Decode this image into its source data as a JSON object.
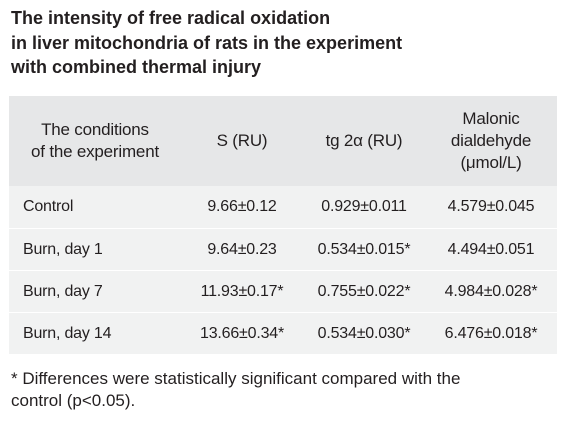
{
  "title_lines": [
    "The intensity of free radical oxidation",
    "in liver mitochondria of rats in the experiment",
    "with combined thermal injury"
  ],
  "table": {
    "headers": [
      [
        "The conditions",
        "of the experiment"
      ],
      [
        "S (RU)"
      ],
      [
        "tg 2α (RU)"
      ],
      [
        "Malonic",
        "dialdehyde",
        "(μmol/L)"
      ]
    ],
    "rows": [
      [
        "Control",
        "9.66±0.12",
        "0.929±0.011",
        "4.579±0.045"
      ],
      [
        "Burn, day 1",
        "9.64±0.23",
        "0.534±0.015*",
        "4.494±0.051"
      ],
      [
        "Burn, day 7",
        "11.93±0.17*",
        "0.755±0.022*",
        "4.984±0.028*"
      ],
      [
        "Burn, day 14",
        "13.66±0.34*",
        "0.534±0.030*",
        "6.476±0.018*"
      ]
    ]
  },
  "footnote_lines": [
    "* Differences were statistically significant compared with the",
    "control (p<0.05)."
  ],
  "colors": {
    "header_bg": "#e6e7e8",
    "body_bg": "#f1f2f2",
    "text": "#231f20"
  }
}
